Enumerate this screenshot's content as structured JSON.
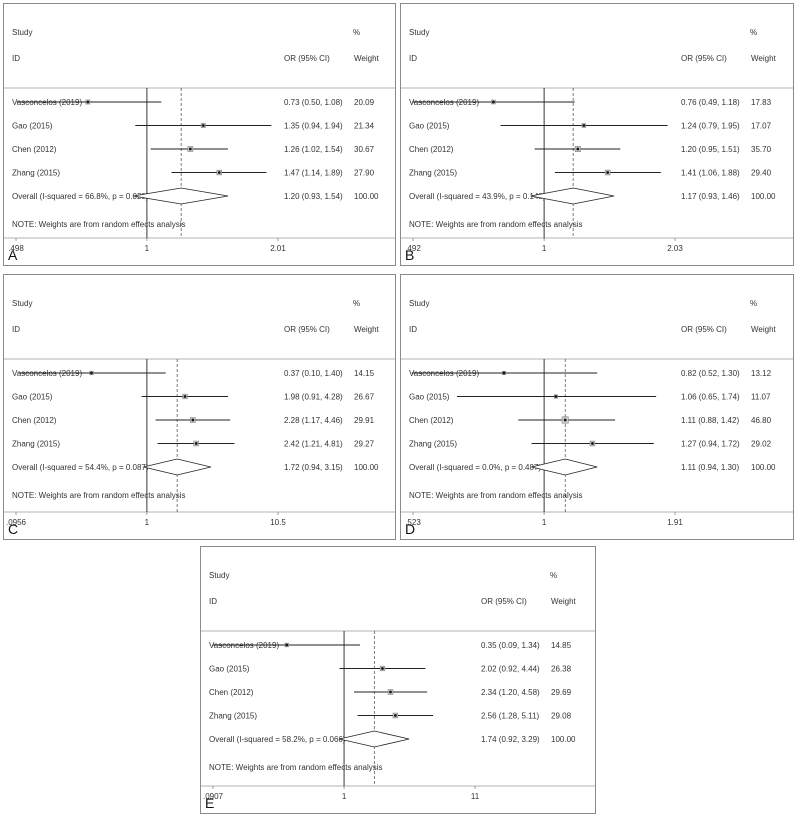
{
  "chart_data": [
    {
      "panel_label": "A",
      "type": "forest",
      "header": {
        "study": "Study",
        "id": "ID",
        "or_ci": "OR (95% CI)",
        "pct": "%",
        "weight": "Weight"
      },
      "x_ticks": [
        ".498",
        "1",
        "2.01"
      ],
      "xscale": "log",
      "xlim": [
        0.498,
        2.01
      ],
      "studies": [
        {
          "name": "Vasconcelos (2019)",
          "or": 0.73,
          "lo": 0.5,
          "hi": 1.08,
          "text": "0.73 (0.50, 1.08)",
          "weight": "20.09"
        },
        {
          "name": "Gao (2015)",
          "or": 1.35,
          "lo": 0.94,
          "hi": 1.94,
          "text": "1.35 (0.94, 1.94)",
          "weight": "21.34"
        },
        {
          "name": "Chen (2012)",
          "or": 1.26,
          "lo": 1.02,
          "hi": 1.54,
          "text": "1.26 (1.02, 1.54)",
          "weight": "30.67"
        },
        {
          "name": "Zhang (2015)",
          "or": 1.47,
          "lo": 1.14,
          "hi": 1.89,
          "text": "1.47 (1.14, 1.89)",
          "weight": "27.90"
        }
      ],
      "overall": {
        "label": "Overall  (I-squared = 66.8%, p = 0.029)",
        "or": 1.2,
        "lo": 0.93,
        "hi": 1.54,
        "text": "1.20 (0.93, 1.54)",
        "weight": "100.00"
      },
      "note": "NOTE: Weights are from random effects analysis"
    },
    {
      "panel_label": "B",
      "type": "forest",
      "header": {
        "study": "Study",
        "id": "ID",
        "or_ci": "OR (95% CI)",
        "pct": "%",
        "weight": "Weight"
      },
      "x_ticks": [
        ".492",
        "1",
        "2.03"
      ],
      "xscale": "log",
      "xlim": [
        0.492,
        2.03
      ],
      "studies": [
        {
          "name": "Vasconcelos (2019)",
          "or": 0.76,
          "lo": 0.49,
          "hi": 1.18,
          "text": "0.76 (0.49, 1.18)",
          "weight": "17.83"
        },
        {
          "name": "Gao (2015)",
          "or": 1.24,
          "lo": 0.79,
          "hi": 1.95,
          "text": "1.24 (0.79, 1.95)",
          "weight": "17.07"
        },
        {
          "name": "Chen (2012)",
          "or": 1.2,
          "lo": 0.95,
          "hi": 1.51,
          "text": "1.20 (0.95, 1.51)",
          "weight": "35.70"
        },
        {
          "name": "Zhang (2015)",
          "or": 1.41,
          "lo": 1.06,
          "hi": 1.88,
          "text": "1.41 (1.06, 1.88)",
          "weight": "29.40"
        }
      ],
      "overall": {
        "label": "Overall  (I-squared = 43.9%, p = 0.148)",
        "or": 1.17,
        "lo": 0.93,
        "hi": 1.46,
        "text": "1.17 (0.93, 1.46)",
        "weight": "100.00"
      },
      "note": "NOTE: Weights are from random effects analysis"
    },
    {
      "panel_label": "C",
      "type": "forest",
      "header": {
        "study": "Study",
        "id": "ID",
        "or_ci": "OR (95% CI)",
        "pct": "%",
        "weight": "Weight"
      },
      "x_ticks": [
        ".0956",
        "1",
        "10.5"
      ],
      "xscale": "log",
      "xlim": [
        0.0956,
        10.5
      ],
      "studies": [
        {
          "name": "Vasconcelos (2019)",
          "or": 0.37,
          "lo": 0.1,
          "hi": 1.4,
          "text": "0.37 (0.10, 1.40)",
          "weight": "14.15"
        },
        {
          "name": "Gao (2015)",
          "or": 1.98,
          "lo": 0.91,
          "hi": 4.28,
          "text": "1.98 (0.91, 4.28)",
          "weight": "26.67"
        },
        {
          "name": "Chen (2012)",
          "or": 2.28,
          "lo": 1.17,
          "hi": 4.46,
          "text": "2.28 (1.17, 4.46)",
          "weight": "29.91"
        },
        {
          "name": "Zhang (2015)",
          "or": 2.42,
          "lo": 1.21,
          "hi": 4.81,
          "text": "2.42 (1.21, 4.81)",
          "weight": "29.27"
        }
      ],
      "overall": {
        "label": "Overall  (I-squared = 54.4%, p = 0.087)",
        "or": 1.72,
        "lo": 0.94,
        "hi": 3.15,
        "text": "1.72 (0.94, 3.15)",
        "weight": "100.00"
      },
      "note": "NOTE: Weights are from random effects analysis"
    },
    {
      "panel_label": "D",
      "type": "forest",
      "header": {
        "study": "Study",
        "id": "ID",
        "or_ci": "OR (95% CI)",
        "pct": "%",
        "weight": "Weight"
      },
      "x_ticks": [
        ".523",
        "1",
        "1.91"
      ],
      "xscale": "log",
      "xlim": [
        0.523,
        1.91
      ],
      "studies": [
        {
          "name": "Vasconcelos (2019)",
          "or": 0.82,
          "lo": 0.52,
          "hi": 1.3,
          "text": "0.82 (0.52, 1.30)",
          "weight": "13.12"
        },
        {
          "name": "Gao (2015)",
          "or": 1.06,
          "lo": 0.65,
          "hi": 1.74,
          "text": "1.06 (0.65, 1.74)",
          "weight": "11.07"
        },
        {
          "name": "Chen (2012)",
          "or": 1.11,
          "lo": 0.88,
          "hi": 1.42,
          "text": "1.11 (0.88, 1.42)",
          "weight": "46.80"
        },
        {
          "name": "Zhang (2015)",
          "or": 1.27,
          "lo": 0.94,
          "hi": 1.72,
          "text": "1.27 (0.94, 1.72)",
          "weight": "29.02"
        }
      ],
      "overall": {
        "label": "Overall  (I-squared = 0.0%, p = 0.487)",
        "or": 1.11,
        "lo": 0.94,
        "hi": 1.3,
        "text": "1.11 (0.94, 1.30)",
        "weight": "100.00"
      },
      "note": "NOTE: Weights are from random effects analysis"
    },
    {
      "panel_label": "E",
      "type": "forest",
      "header": {
        "study": "Study",
        "id": "ID",
        "or_ci": "OR (95% CI)",
        "pct": "%",
        "weight": "Weight"
      },
      "x_ticks": [
        ".0907",
        "1",
        "11"
      ],
      "xscale": "log",
      "xlim": [
        0.0907,
        11
      ],
      "studies": [
        {
          "name": "Vasconcelos (2019)",
          "or": 0.35,
          "lo": 0.09,
          "hi": 1.34,
          "text": "0.35 (0.09, 1.34)",
          "weight": "14.85"
        },
        {
          "name": "Gao (2015)",
          "or": 2.02,
          "lo": 0.92,
          "hi": 4.44,
          "text": "2.02 (0.92, 4.44)",
          "weight": "26.38"
        },
        {
          "name": "Chen (2012)",
          "or": 2.34,
          "lo": 1.2,
          "hi": 4.58,
          "text": "2.34 (1.20, 4.58)",
          "weight": "29.69"
        },
        {
          "name": "Zhang (2015)",
          "or": 2.56,
          "lo": 1.28,
          "hi": 5.11,
          "text": "2.56 (1.28, 5.11)",
          "weight": "29.08"
        }
      ],
      "overall": {
        "label": "Overall  (I-squared = 58.2%, p = 0.066)",
        "or": 1.74,
        "lo": 0.92,
        "hi": 3.29,
        "text": "1.74 (0.92, 3.29)",
        "weight": "100.00"
      },
      "note": "NOTE: Weights are from random effects analysis"
    }
  ]
}
